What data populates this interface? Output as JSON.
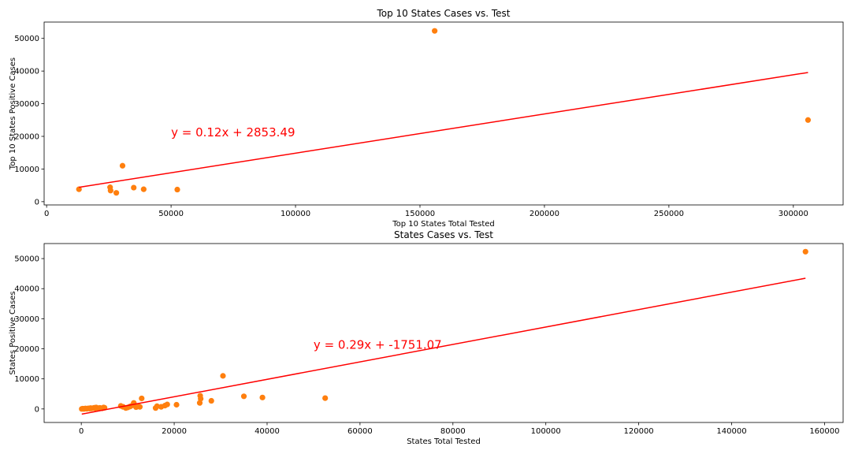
{
  "colors": {
    "point": "#ff7f0e",
    "regression_line": "#ff0000"
  },
  "chart_data": [
    {
      "type": "scatter",
      "title": "Top 10 States Cases vs. Test",
      "xlabel": "Top 10 States Total Tested",
      "ylabel": "Top 10 States Positive Cases",
      "xlim": [
        -1000,
        320000
      ],
      "ylim": [
        -1000,
        55000
      ],
      "xticks": [
        0,
        50000,
        100000,
        150000,
        200000,
        250000,
        300000
      ],
      "yticks": [
        0,
        10000,
        20000,
        30000,
        40000,
        50000
      ],
      "points": [
        {
          "x": 13000,
          "y": 3800
        },
        {
          "x": 25500,
          "y": 4400
        },
        {
          "x": 25700,
          "y": 3400
        },
        {
          "x": 28000,
          "y": 2700
        },
        {
          "x": 30500,
          "y": 11000
        },
        {
          "x": 35000,
          "y": 4300
        },
        {
          "x": 39000,
          "y": 3800
        },
        {
          "x": 52500,
          "y": 3700
        },
        {
          "x": 155900,
          "y": 52300
        },
        {
          "x": 305900,
          "y": 25000
        }
      ],
      "regression": {
        "slope": 0.12,
        "intercept": 2853.49,
        "x_range": [
          13000,
          305900
        ]
      },
      "annotation": {
        "text": "y = 0.12x + 2853.49",
        "x": 50000,
        "y": 20000
      }
    },
    {
      "type": "scatter",
      "title": "States Cases vs. Test",
      "xlabel": "States Total Tested",
      "ylabel": "States Positive Cases",
      "xlim": [
        -8000,
        164000
      ],
      "ylim": [
        -4500,
        55000
      ],
      "xticks": [
        0,
        20000,
        40000,
        60000,
        80000,
        100000,
        120000,
        140000,
        160000
      ],
      "yticks": [
        0,
        10000,
        20000,
        30000,
        40000,
        50000
      ],
      "points": [
        {
          "x": 100,
          "y": 0
        },
        {
          "x": 300,
          "y": 100
        },
        {
          "x": 500,
          "y": 0
        },
        {
          "x": 700,
          "y": 50
        },
        {
          "x": 900,
          "y": 150
        },
        {
          "x": 1200,
          "y": 50
        },
        {
          "x": 1500,
          "y": 200
        },
        {
          "x": 1800,
          "y": 100
        },
        {
          "x": 2000,
          "y": 300
        },
        {
          "x": 2200,
          "y": 150
        },
        {
          "x": 2500,
          "y": 250
        },
        {
          "x": 2800,
          "y": 400
        },
        {
          "x": 3000,
          "y": 200
        },
        {
          "x": 3200,
          "y": 500
        },
        {
          "x": 3500,
          "y": 300
        },
        {
          "x": 3800,
          "y": 150
        },
        {
          "x": 4000,
          "y": 350
        },
        {
          "x": 4500,
          "y": 200
        },
        {
          "x": 4800,
          "y": 500
        },
        {
          "x": 5000,
          "y": 400
        },
        {
          "x": 8500,
          "y": 1000
        },
        {
          "x": 9000,
          "y": 700
        },
        {
          "x": 9600,
          "y": 300
        },
        {
          "x": 10000,
          "y": 500
        },
        {
          "x": 10500,
          "y": 800
        },
        {
          "x": 11000,
          "y": 1200
        },
        {
          "x": 11300,
          "y": 2000
        },
        {
          "x": 11800,
          "y": 600
        },
        {
          "x": 12200,
          "y": 1000
        },
        {
          "x": 12600,
          "y": 700
        },
        {
          "x": 13000,
          "y": 3500
        },
        {
          "x": 16000,
          "y": 300
        },
        {
          "x": 16300,
          "y": 900
        },
        {
          "x": 17200,
          "y": 700
        },
        {
          "x": 18000,
          "y": 1100
        },
        {
          "x": 18500,
          "y": 1500
        },
        {
          "x": 20500,
          "y": 1400
        },
        {
          "x": 25500,
          "y": 2000
        },
        {
          "x": 25600,
          "y": 4400
        },
        {
          "x": 25700,
          "y": 3400
        },
        {
          "x": 28000,
          "y": 2700
        },
        {
          "x": 30500,
          "y": 11000
        },
        {
          "x": 35000,
          "y": 4200
        },
        {
          "x": 39000,
          "y": 3800
        },
        {
          "x": 52500,
          "y": 3600
        },
        {
          "x": 155900,
          "y": 52300
        }
      ],
      "regression": {
        "slope": 0.29,
        "intercept": -1751.07,
        "x_range": [
          100,
          155900
        ]
      },
      "annotation": {
        "text": "y = 0.29x + -1751.07",
        "x": 50000,
        "y": 20000
      }
    }
  ]
}
